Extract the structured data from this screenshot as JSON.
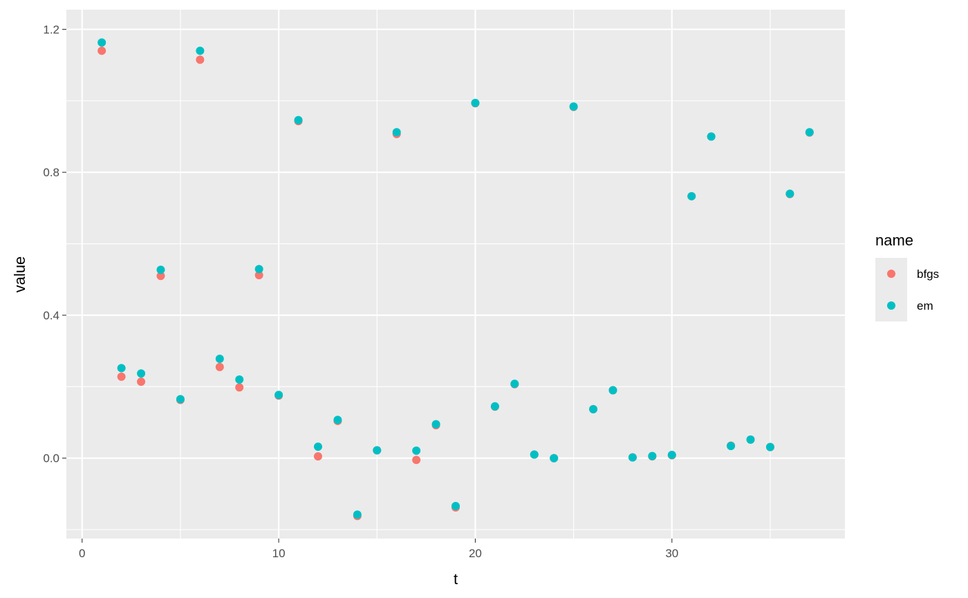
{
  "chart_data": {
    "type": "scatter",
    "xlabel": "t",
    "ylabel": "value",
    "xlim": [
      -0.8,
      38.8
    ],
    "ylim": [
      -0.225,
      1.255
    ],
    "xticks": [
      0,
      10,
      20,
      30
    ],
    "yticks": [
      0.0,
      0.4,
      0.8,
      1.2
    ],
    "ytick_labels": [
      "0.0",
      "0.4",
      "0.8",
      "1.2"
    ],
    "grid": true,
    "legend": {
      "title": "name",
      "position": "right"
    },
    "series": [
      {
        "name": "bfgs",
        "color": "#F8766D",
        "x": [
          1,
          2,
          3,
          4,
          5,
          6,
          7,
          8,
          9,
          10,
          11,
          12,
          13,
          14,
          15,
          16,
          17,
          18,
          19,
          20,
          21,
          22,
          23,
          24,
          25,
          26,
          27,
          28,
          29,
          30,
          31,
          32,
          33,
          34,
          35,
          36,
          37
        ],
        "y": [
          1.14,
          0.228,
          0.214,
          0.51,
          0.163,
          1.115,
          0.255,
          0.198,
          0.512,
          0.175,
          0.943,
          0.005,
          0.104,
          -0.162,
          0.022,
          0.907,
          -0.005,
          0.092,
          -0.138,
          0.993,
          0.144,
          0.207,
          0.01,
          0.0,
          0.983,
          0.137,
          0.19,
          0.002,
          0.005,
          0.008,
          0.733,
          0.9,
          0.035,
          0.052,
          0.031,
          0.739,
          0.911
        ]
      },
      {
        "name": "em",
        "color": "#00BFC4",
        "x": [
          1,
          2,
          3,
          4,
          5,
          6,
          7,
          8,
          9,
          10,
          11,
          12,
          13,
          14,
          15,
          16,
          17,
          18,
          19,
          20,
          21,
          22,
          23,
          24,
          25,
          26,
          27,
          28,
          29,
          30,
          31,
          32,
          33,
          34,
          35,
          36,
          37
        ],
        "y": [
          1.163,
          0.252,
          0.237,
          0.527,
          0.165,
          1.14,
          0.278,
          0.22,
          0.529,
          0.177,
          0.946,
          0.032,
          0.107,
          -0.158,
          0.022,
          0.912,
          0.021,
          0.095,
          -0.134,
          0.994,
          0.145,
          0.208,
          0.01,
          0.0,
          0.984,
          0.137,
          0.19,
          0.002,
          0.006,
          0.009,
          0.733,
          0.9,
          0.034,
          0.052,
          0.031,
          0.74,
          0.912
        ]
      }
    ]
  }
}
